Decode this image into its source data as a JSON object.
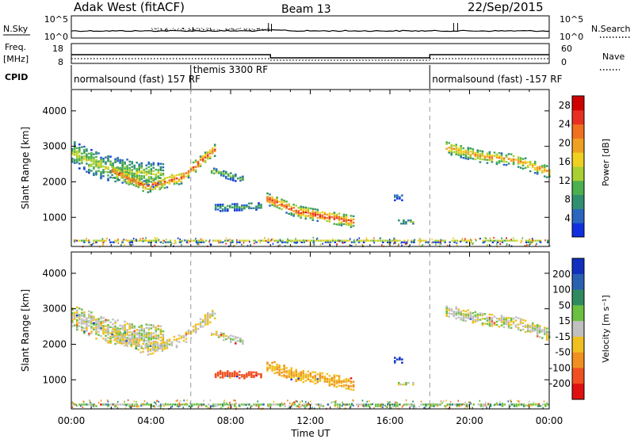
{
  "header": {
    "station": "Adak West (fitACF)",
    "beam": "Beam 13",
    "date": "22/Sep/2015"
  },
  "top_panels": {
    "nsky_label": "N.Sky",
    "nsky_ticks": [
      "10^5",
      "10^0"
    ],
    "nsearch_label": "N.Search",
    "nsearch_ticks": [
      "10^5",
      "10^0"
    ],
    "freq_label": "Freq.",
    "freq_unit": "[MHz]",
    "freq_ticks": [
      "18",
      "8"
    ],
    "nave_label": "Nave",
    "nave_ticks": [
      "60",
      "0"
    ],
    "cpid_label": "CPID",
    "cpid_segments": [
      {
        "label": "normalsound (fast) 157 RF",
        "start": 0.0,
        "end": 6.0
      },
      {
        "label": "themis 3300 RF",
        "start": 6.0,
        "end": 18.0
      },
      {
        "label": "normalsound (fast) -157 RF",
        "start": 18.0,
        "end": 24.0
      }
    ],
    "freq_series": [
      {
        "start": 0.0,
        "end": 10.0,
        "value": 12.0
      },
      {
        "start": 10.0,
        "end": 18.0,
        "value": 10.0
      },
      {
        "start": 18.0,
        "end": 24.0,
        "value": 12.0
      }
    ]
  },
  "chart_data": [
    {
      "type": "heatmap",
      "panel": "power",
      "ylabel": "Slant Range [km]",
      "xlabel": "Time UT",
      "x_ticks": [
        "00:00",
        "04:00",
        "08:00",
        "12:00",
        "16:00",
        "20:00",
        "00:00"
      ],
      "x_range_hours": [
        0,
        24
      ],
      "y_ticks": [
        1000,
        2000,
        3000,
        4000
      ],
      "ylim": [
        180,
        4600
      ],
      "colorbar": {
        "label": "Power [dB]",
        "ticks": [
          4,
          8,
          12,
          16,
          20,
          24,
          28
        ],
        "range": [
          0,
          30
        ],
        "colors": [
          "#1030e0",
          "#2a66c0",
          "#2f8f70",
          "#4caf50",
          "#a8d032",
          "#f0d020",
          "#f0a020",
          "#f07020",
          "#e83020",
          "#d00000"
        ]
      },
      "echo_bands": [
        {
          "t0": 0.0,
          "t1": 4.6,
          "center": [
            2800,
            2400,
            2250,
            2150
          ],
          "width": 700,
          "peak": 14
        },
        {
          "t0": 2.0,
          "t1": 7.2,
          "center": [
            2300,
            1850,
            2100,
            2900
          ],
          "width": 350,
          "peak": 24
        },
        {
          "t0": 7.0,
          "t1": 8.6,
          "center": [
            2300,
            2050
          ],
          "width": 220,
          "peak": 12
        },
        {
          "t0": 7.2,
          "t1": 9.5,
          "center": [
            1250,
            1300
          ],
          "width": 200,
          "peak": 10
        },
        {
          "t0": 9.8,
          "t1": 14.2,
          "center": [
            1500,
            1150,
            1000,
            850
          ],
          "width": 330,
          "peak": 26
        },
        {
          "t0": 16.2,
          "t1": 16.6,
          "center": [
            1550
          ],
          "width": 180,
          "peak": 6
        },
        {
          "t0": 16.4,
          "t1": 17.2,
          "center": [
            850
          ],
          "width": 100,
          "peak": 12
        },
        {
          "t0": 18.8,
          "t1": 24.0,
          "center": [
            2950,
            2700,
            2600,
            2250
          ],
          "width": 350,
          "peak": 20
        },
        {
          "t0": 0.0,
          "t1": 24.0,
          "center": [
            320
          ],
          "width": 90,
          "peak": 14
        }
      ]
    },
    {
      "type": "heatmap",
      "panel": "velocity",
      "ylabel": "Slant Range [km]",
      "xlabel": "Time UT",
      "x_ticks": [
        "00:00",
        "04:00",
        "08:00",
        "12:00",
        "16:00",
        "20:00",
        "00:00"
      ],
      "x_range_hours": [
        0,
        24
      ],
      "y_ticks": [
        1000,
        2000,
        3000,
        4000
      ],
      "ylim": [
        180,
        4600
      ],
      "colorbar": {
        "label": "Velocity [m s⁻¹]",
        "ticks": [
          200,
          100,
          50,
          15,
          -15,
          -50,
          -100,
          -200
        ],
        "colors": [
          "#1030c0",
          "#2a60b0",
          "#2f8a60",
          "#6cc040",
          "#c0c0c0",
          "#f0c020",
          "#f09020",
          "#f05020",
          "#e01010"
        ]
      },
      "echo_bands": [
        {
          "t0": 0.0,
          "t1": 4.6,
          "center": [
            2800,
            2400,
            2250,
            2150
          ],
          "width": 700,
          "velocity": 0
        },
        {
          "t0": 2.0,
          "t1": 7.2,
          "center": [
            2300,
            1850,
            2100,
            2900
          ],
          "width": 350,
          "velocity": -10
        },
        {
          "t0": 7.0,
          "t1": 8.6,
          "center": [
            2300,
            2050
          ],
          "width": 220,
          "velocity": 0
        },
        {
          "t0": 7.2,
          "t1": 9.5,
          "center": [
            1150,
            1100
          ],
          "width": 200,
          "velocity": -140
        },
        {
          "t0": 9.8,
          "t1": 14.2,
          "center": [
            1400,
            1100,
            1000,
            850
          ],
          "width": 330,
          "velocity": -45
        },
        {
          "t0": 16.2,
          "t1": 16.6,
          "center": [
            1550
          ],
          "width": 180,
          "velocity": 220
        },
        {
          "t0": 16.4,
          "t1": 17.2,
          "center": [
            850
          ],
          "width": 100,
          "velocity": 0
        },
        {
          "t0": 18.8,
          "t1": 24.0,
          "center": [
            2950,
            2700,
            2600,
            2250
          ],
          "width": 350,
          "velocity": 0
        },
        {
          "t0": 0.0,
          "t1": 24.0,
          "center": [
            280
          ],
          "width": 90,
          "velocity": 30
        }
      ]
    }
  ]
}
